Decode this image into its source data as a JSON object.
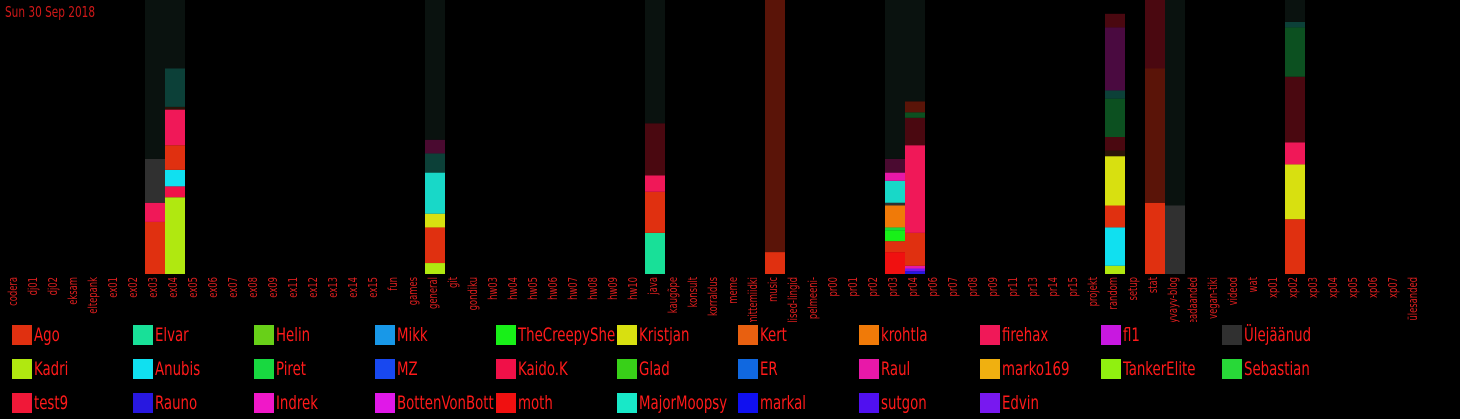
{
  "page": {
    "date": "Sun 30 Sep 2018"
  },
  "colors": {
    "tick_label": "#dd1f1f",
    "background": "#000000"
  },
  "chart_data": {
    "type": "bar",
    "stacked": true,
    "title": "",
    "xlabel": "",
    "ylabel": "",
    "ylim": [
      0,
      100
    ],
    "legend_placement": "bottom",
    "grid": false,
    "categories": [
      "codera",
      "dj01",
      "dj02",
      "eksam",
      "eltepank",
      "ex01",
      "ex02",
      "ex03",
      "ex04",
      "ex05",
      "ex06",
      "ex07",
      "ex08",
      "ex09",
      "ex11",
      "ex12",
      "ex13",
      "ex14",
      "ex15",
      "fun",
      "games",
      "general",
      "git",
      "gondiku",
      "hw03",
      "hw04",
      "hw05",
      "hw06",
      "hw07",
      "hw08",
      "hw09",
      "hw10",
      "java",
      "kaugõpe",
      "konsult",
      "korraldus",
      "meme",
      "mittemiidki",
      "music",
      "olulised-lingid",
      "pelmeeni-",
      "pr00",
      "pr01",
      "pr02",
      "pr03",
      "pr04",
      "pr06",
      "pr07",
      "pr08",
      "pr09",
      "pr11",
      "pr13",
      "pr14",
      "pr15",
      "projekt",
      "random",
      "setup",
      "stat",
      "syvayv-blog",
      "teadaanded",
      "vegan-tiki",
      "videod",
      "wat",
      "xp01",
      "xp02",
      "xp03",
      "xp04",
      "xp05",
      "xp06",
      "xp07",
      "ülesanded"
    ],
    "series": [
      {
        "name": "Ago",
        "color": "#e03010"
      },
      {
        "name": "Elvar",
        "color": "#18e098"
      },
      {
        "name": "Helin",
        "color": "#68d018"
      },
      {
        "name": "Mikk",
        "color": "#1898e8"
      },
      {
        "name": "TheCreepySheep",
        "color": "#18f018"
      },
      {
        "name": "Kristjan",
        "color": "#d8e010"
      },
      {
        "name": "Kert",
        "color": "#e86010"
      },
      {
        "name": "krohtla",
        "color": "#f07a08"
      },
      {
        "name": "firehax",
        "color": "#f01858"
      },
      {
        "name": "fl1",
        "color": "#c818e0"
      },
      {
        "name": "Ülejäänud",
        "color": "#303030"
      },
      {
        "name": "Kadri",
        "color": "#b0e810"
      },
      {
        "name": "Anubis",
        "color": "#10e0f0"
      },
      {
        "name": "Piret",
        "color": "#18d840"
      },
      {
        "name": "MZ",
        "color": "#1848f0"
      },
      {
        "name": "Kaido.K",
        "color": "#f01048"
      },
      {
        "name": "Glad",
        "color": "#38d018"
      },
      {
        "name": "ER",
        "color": "#1068e0"
      },
      {
        "name": "Raul",
        "color": "#e818a8"
      },
      {
        "name": "marko169",
        "color": "#f0b010"
      },
      {
        "name": "TankerElite",
        "color": "#90f010"
      },
      {
        "name": "Sebastian",
        "color": "#28d838"
      },
      {
        "name": "test9",
        "color": "#f01838"
      },
      {
        "name": "Rauno",
        "color": "#2818e0"
      },
      {
        "name": "Indrek",
        "color": "#f018c8"
      },
      {
        "name": "BottenVonBottom",
        "color": "#e018e8"
      },
      {
        "name": "moth",
        "color": "#f01010"
      },
      {
        "name": "MajorMoopsy",
        "color": "#18e8c8"
      },
      {
        "name": "markal",
        "color": "#1010f0"
      },
      {
        "name": "sutgon",
        "color": "#5010f0"
      },
      {
        "name": "Edvin",
        "color": "#7818f0"
      }
    ],
    "bars": [
      {
        "category": "ex03",
        "segments": [
          {
            "value": 19,
            "color": "#e03010"
          },
          {
            "value": 7,
            "color": "#f01858"
          },
          {
            "value": 16,
            "color": "#303030"
          },
          {
            "value": 58,
            "color": "#0a120f"
          }
        ]
      },
      {
        "category": "ex04",
        "segments": [
          {
            "value": 28,
            "color": "#b0e810"
          },
          {
            "value": 4,
            "color": "#f01048"
          },
          {
            "value": 6,
            "color": "#10e0f0"
          },
          {
            "value": 9,
            "color": "#e03010"
          },
          {
            "value": 13,
            "color": "#f01858"
          },
          {
            "value": 1,
            "color": "#2a1408"
          },
          {
            "value": 14,
            "color": "#0c4038"
          },
          {
            "value": 25,
            "color": "#0a120f"
          }
        ]
      },
      {
        "category": "general",
        "segments": [
          {
            "value": 4,
            "color": "#b0e810"
          },
          {
            "value": 13,
            "color": "#e03010"
          },
          {
            "value": 5,
            "color": "#d8e010"
          },
          {
            "value": 15,
            "color": "#18d8c8"
          },
          {
            "value": 7,
            "color": "#0c4038"
          },
          {
            "value": 5,
            "color": "#4a0a30"
          },
          {
            "value": 51,
            "color": "#0a120f"
          }
        ]
      },
      {
        "category": "java",
        "segments": [
          {
            "value": 15,
            "color": "#18e098"
          },
          {
            "value": 15,
            "color": "#e03010"
          },
          {
            "value": 6,
            "color": "#f01858"
          },
          {
            "value": 19,
            "color": "#4a0810"
          },
          {
            "value": 45,
            "color": "#0a120f"
          }
        ]
      },
      {
        "category": "music",
        "segments": [
          {
            "value": 8,
            "color": "#e03010"
          },
          {
            "value": 92,
            "color": "#5a1408"
          }
        ]
      },
      {
        "category": "pr03",
        "segments": [
          {
            "value": 8,
            "color": "#f01010"
          },
          {
            "value": 4,
            "color": "#e03010"
          },
          {
            "value": 4,
            "color": "#18f018"
          },
          {
            "value": 1,
            "color": "#18d840"
          },
          {
            "value": 8,
            "color": "#f07a08"
          },
          {
            "value": 1,
            "color": "#303030"
          },
          {
            "value": 8,
            "color": "#18d8c8"
          },
          {
            "value": 3,
            "color": "#e818a8"
          },
          {
            "value": 5,
            "color": "#4a0a30"
          },
          {
            "value": 58,
            "color": "#0a120f"
          }
        ]
      },
      {
        "category": "pr04",
        "segments": [
          {
            "value": 1,
            "color": "#2818e0"
          },
          {
            "value": 1,
            "color": "#7818f0"
          },
          {
            "value": 1,
            "color": "#e818a8"
          },
          {
            "value": 12,
            "color": "#e03010"
          },
          {
            "value": 32,
            "color": "#f01858"
          },
          {
            "value": 10,
            "color": "#4a0810"
          },
          {
            "value": 2,
            "color": "#0c5020"
          },
          {
            "value": 4,
            "color": "#5a1408"
          },
          {
            "value": 37,
            "color": "#0a120f"
          }
        ]
      },
      {
        "category": "random",
        "segments": [
          {
            "value": 3,
            "color": "#b0e810"
          },
          {
            "value": 14,
            "color": "#10e0f0"
          },
          {
            "value": 8,
            "color": "#e03010"
          },
          {
            "value": 18,
            "color": "#d8e010"
          },
          {
            "value": 2,
            "color": "#2a1408"
          },
          {
            "value": 5,
            "color": "#4a0810"
          },
          {
            "value": 14,
            "color": "#0c5020"
          },
          {
            "value": 3,
            "color": "#0c4038"
          },
          {
            "value": 23,
            "color": "#4a0a40"
          },
          {
            "value": 5,
            "color": "#4a0810"
          },
          {
            "value": 5,
            "color": "#000000"
          }
        ]
      },
      {
        "category": "stat",
        "segments": [
          {
            "value": 26,
            "color": "#e03010"
          },
          {
            "value": 49,
            "color": "#5a1408"
          },
          {
            "value": 25,
            "color": "#4a0810"
          }
        ]
      },
      {
        "category": "syvayv-blog",
        "segments": [
          {
            "value": 25,
            "color": "#303030"
          },
          {
            "value": 75,
            "color": "#0a120f"
          }
        ]
      },
      {
        "category": "xp02",
        "segments": [
          {
            "value": 20,
            "color": "#e03010"
          },
          {
            "value": 20,
            "color": "#d8e010"
          },
          {
            "value": 8,
            "color": "#f01858"
          },
          {
            "value": 24,
            "color": "#4a0810"
          },
          {
            "value": 18,
            "color": "#0c5020"
          },
          {
            "value": 2,
            "color": "#0c4038"
          },
          {
            "value": 8,
            "color": "#0a120f"
          }
        ]
      }
    ]
  }
}
